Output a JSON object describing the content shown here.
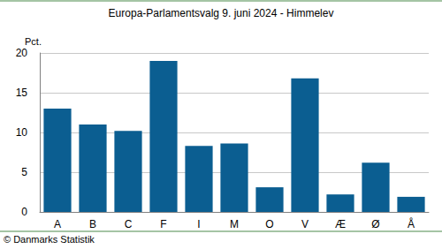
{
  "chart_data": {
    "type": "bar",
    "title": "Europa-Parlamentsvalg 9. juni 2024 - Himmelev",
    "ylabel": "Pct.",
    "source": "© Danmarks Statistik",
    "categories": [
      "A",
      "B",
      "C",
      "F",
      "I",
      "M",
      "O",
      "V",
      "Æ",
      "Ø",
      "Å"
    ],
    "values": [
      13.0,
      11.0,
      10.2,
      19.0,
      8.3,
      8.6,
      3.1,
      16.8,
      2.2,
      6.2,
      1.9
    ],
    "color": "#0b5e91",
    "ylim": [
      0,
      20
    ],
    "yticks": [
      0,
      5,
      10,
      15,
      20
    ],
    "grid": true
  }
}
